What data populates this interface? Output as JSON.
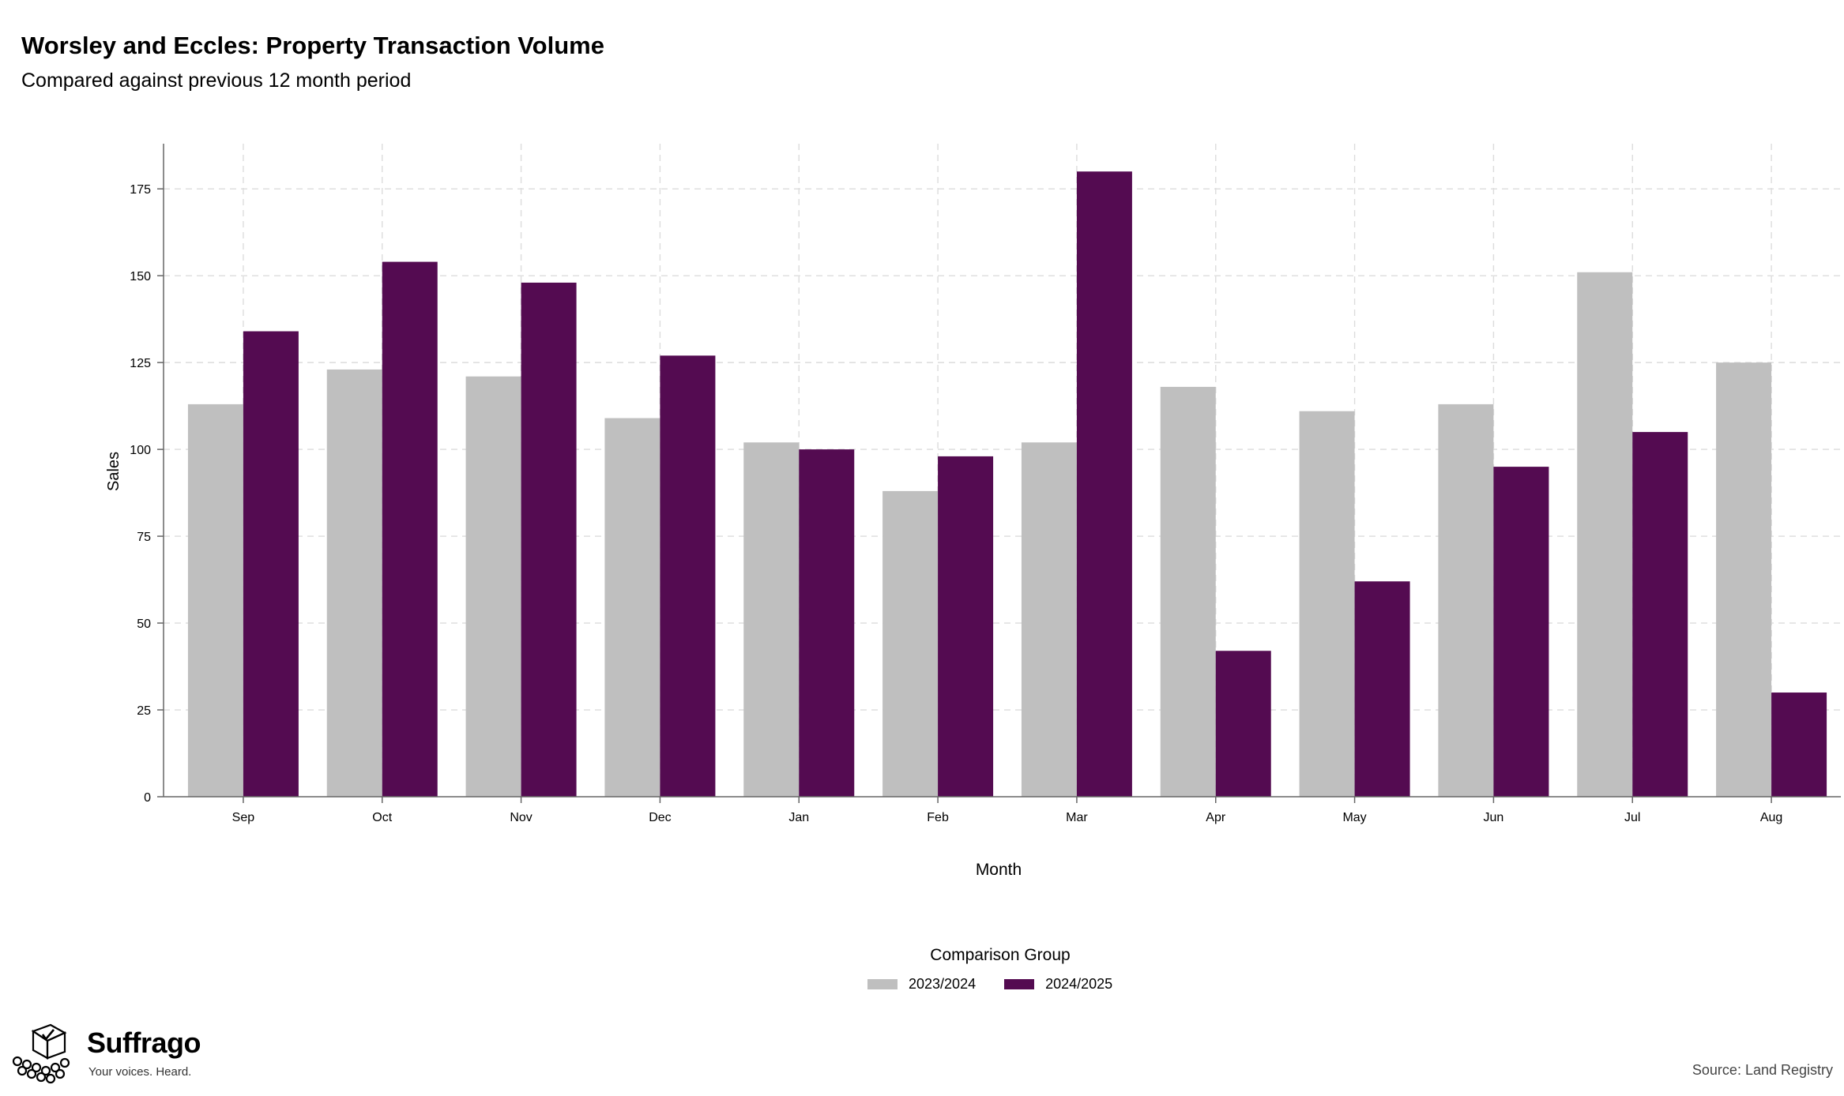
{
  "header": {
    "title": "Worsley and Eccles: Property Transaction Volume",
    "subtitle": "Compared against previous 12 month period"
  },
  "chart_data": {
    "type": "bar",
    "xlabel": "Month",
    "ylabel": "Sales",
    "ylim": [
      0,
      188
    ],
    "yticks": [
      0,
      25,
      50,
      75,
      100,
      125,
      150,
      175
    ],
    "categories": [
      "Sep",
      "Oct",
      "Nov",
      "Dec",
      "Jan",
      "Feb",
      "Mar",
      "Apr",
      "May",
      "Jun",
      "Jul",
      "Aug"
    ],
    "series": [
      {
        "name": "2023/2024",
        "color": "#bfbfbf",
        "values": [
          113,
          123,
          121,
          109,
          102,
          88,
          102,
          118,
          111,
          113,
          151,
          125
        ]
      },
      {
        "name": "2024/2025",
        "color": "#540b51",
        "values": [
          134,
          154,
          148,
          127,
          100,
          98,
          180,
          42,
          62,
          95,
          105,
          30
        ]
      }
    ],
    "grid": true,
    "legend": {
      "title": "Comparison Group",
      "position": "bottom"
    }
  },
  "brand": {
    "name": "Suffrago",
    "tagline": "Your voices. Heard."
  },
  "source": "Source: Land Registry"
}
